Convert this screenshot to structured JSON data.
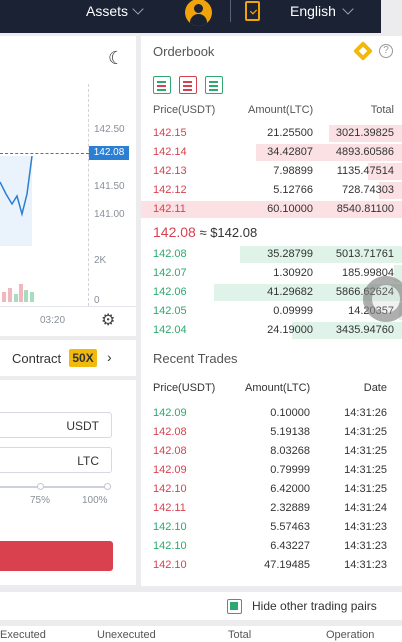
{
  "topbar": {
    "assets": "Assets",
    "language": "English"
  },
  "chart": {
    "axis": [
      "142.50",
      "142.08",
      "141.50",
      "141.00"
    ],
    "current": "142.08",
    "volume_axis": [
      "2K",
      "0"
    ],
    "time": "03:20"
  },
  "contract": {
    "label": "Contract",
    "leverage": "50X"
  },
  "form": {
    "price_unit": "USDT",
    "amount_unit": "LTC",
    "pct_75": "75%",
    "pct_100": "100%"
  },
  "orderbook": {
    "title": "Orderbook",
    "help": "?",
    "headers": {
      "price": "Price(USDT)",
      "amount": "Amount(LTC)",
      "total": "Total"
    },
    "asks": [
      {
        "price": "142.15",
        "amount": "21.25500",
        "total": "3021.39825",
        "depth": 0.28
      },
      {
        "price": "142.14",
        "amount": "34.42807",
        "total": "4893.60586",
        "depth": 0.56
      },
      {
        "price": "142.13",
        "amount": "7.98899",
        "total": "1135.47514",
        "depth": 0.13
      },
      {
        "price": "142.12",
        "amount": "5.12766",
        "total": "728.74303",
        "depth": 0.09
      },
      {
        "price": "142.11",
        "amount": "60.10000",
        "total": "8540.81100",
        "depth": 1.0
      }
    ],
    "last_price": "142.08",
    "last_price_fiat": "≈ $142.08",
    "bids": [
      {
        "price": "142.08",
        "amount": "35.28799",
        "total": "5013.71761",
        "depth": 0.62
      },
      {
        "price": "142.07",
        "amount": "1.30920",
        "total": "185.99804",
        "depth": 0.03
      },
      {
        "price": "142.06",
        "amount": "41.29682",
        "total": "5866.62624",
        "depth": 0.72
      },
      {
        "price": "142.05",
        "amount": "0.09999",
        "total": "14.20357",
        "depth": 0.01
      },
      {
        "price": "142.04",
        "amount": "24.19000",
        "total": "3435.94760",
        "depth": 0.42
      }
    ]
  },
  "recent_trades": {
    "title": "Recent Trades",
    "headers": {
      "price": "Price(USDT)",
      "amount": "Amount(LTC)",
      "date": "Date"
    },
    "rows": [
      {
        "price": "142.09",
        "amount": "0.10000",
        "date": "14:31:26",
        "side": "up"
      },
      {
        "price": "142.08",
        "amount": "5.19138",
        "date": "14:31:25",
        "side": "dn"
      },
      {
        "price": "142.08",
        "amount": "8.03268",
        "date": "14:31:25",
        "side": "dn"
      },
      {
        "price": "142.09",
        "amount": "0.79999",
        "date": "14:31:25",
        "side": "dn"
      },
      {
        "price": "142.10",
        "amount": "6.42000",
        "date": "14:31:25",
        "side": "dn"
      },
      {
        "price": "142.11",
        "amount": "2.32889",
        "date": "14:31:24",
        "side": "dn"
      },
      {
        "price": "142.10",
        "amount": "5.57463",
        "date": "14:31:23",
        "side": "up"
      },
      {
        "price": "142.10",
        "amount": "6.43227",
        "date": "14:31:23",
        "side": "up"
      },
      {
        "price": "142.10",
        "amount": "47.19485",
        "date": "14:31:23",
        "side": "dn"
      }
    ]
  },
  "bottom": {
    "hide_pairs": "Hide other trading pairs",
    "tabs": [
      "Executed",
      "Unexecuted",
      "Total",
      "Operation"
    ]
  },
  "colors": {
    "ask": "#d9414f",
    "bid": "#2ea86e",
    "accent": "#f0b90b",
    "topbar": "#1a2233"
  }
}
